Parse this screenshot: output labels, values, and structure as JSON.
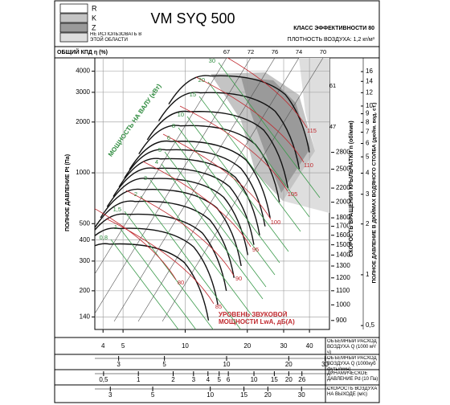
{
  "chart_data": {
    "type": "fan-performance",
    "title": "VM SYQ 500",
    "efficiency_class": "КЛАСС ЭФФЕКТИВНОСТИ 80",
    "air_density": "ПЛОТНОСТЬ ВОЗДУХА: 1,2 кг/м³",
    "legend": [
      {
        "name": "R",
        "color": "#ffffff"
      },
      {
        "name": "K",
        "color": "#c4c4c4"
      },
      {
        "name": "Z",
        "color": "#9a9a9a"
      },
      {
        "name": "НЕ ИСПОЛЬЗОВАТЬ В ЭТОЙ ОБЛАСТИ",
        "color": "#dedede"
      }
    ],
    "efficiency_label": "ОБЩИЙ КПД η (%)",
    "efficiency_values": [
      67,
      72,
      76,
      74,
      70,
      61,
      47
    ],
    "ylabel": "ПОЛНОЕ ДАВЛЕНИЕ Pt (Па)",
    "log_y": true,
    "ylim": [
      118,
      4800
    ],
    "yticks": [
      140,
      200,
      300,
      400,
      500,
      1000,
      2000,
      3000,
      4000
    ],
    "xlabel": "ОБЪЕМНЫЙ РАСХОД ВОЗДУХА Q (1000 м³/ч)",
    "log_x": true,
    "xlim": [
      3.65,
      50
    ],
    "xticks": [
      4,
      5,
      10,
      20,
      30,
      40
    ],
    "grid": true,
    "extra_x_axes": [
      {
        "label": "ОБЪЕМНЫЙ РАСХОД ВОЗДУХА Q (1000куб футы/мин)",
        "xlim": [
          2.3,
          31.5
        ],
        "xticks": [
          3,
          5,
          10,
          20,
          30
        ]
      },
      {
        "label": "ДИНАМИЧЕСКОЕ ДАВЛЕНИЕ Pd (10 Па)",
        "xlim": [
          0.42,
          45
        ],
        "xticks": [
          {
            "value": 0.5,
            "label": "0,5"
          },
          1,
          2,
          3,
          4,
          5,
          6,
          10,
          15,
          20,
          26
        ]
      },
      {
        "label": "СКОРОСТЬ ВОЗДУХА НА ВЫХОДЕ (м/с)",
        "xlim": [
          2.49,
          42
        ],
        "xticks": [
          3,
          5,
          10,
          15,
          20,
          30
        ]
      }
    ],
    "speed_axis": {
      "label": "СКОРОСТЬ ВРАЩЕНИЯ КРЫЛЬЧАТКИ n (об/мин)",
      "lim": [
        847,
        5300
      ],
      "ticks": [
        2800,
        2500,
        2200,
        2000,
        1800,
        1700,
        1600,
        1500,
        1400,
        1300,
        1200,
        1100,
        1000,
        900
      ]
    },
    "inwc_axis": {
      "label": "ПОЛНОЕ ДАВЛЕНИЕ В ДЮЙМАХ ВОДЯНОГО СТОЛБА (дюйм. вод. ст.)",
      "lim": [
        0.474,
        19.3
      ],
      "ticks": [
        16,
        14,
        12,
        10,
        9,
        8,
        7,
        6,
        5,
        4,
        3,
        2,
        1,
        {
          "value": 0.5,
          "label": "0,5"
        }
      ]
    },
    "power_label": "МОЩНОСТЬ НА ВАЛУ (кВт)",
    "power_values": [
      30,
      20,
      15,
      10,
      8,
      6,
      5,
      4,
      3,
      2,
      {
        "value": 1.5,
        "label": "1,5"
      },
      1,
      {
        "value": 0.8,
        "label": "0,8"
      }
    ],
    "sound_label": "УРОВЕНЬ ЗВУКОВОЙ МОЩНОСТИ LwA, дБ(A)",
    "sound_values": [
      115,
      110,
      105,
      100,
      95,
      90,
      85,
      80
    ]
  }
}
